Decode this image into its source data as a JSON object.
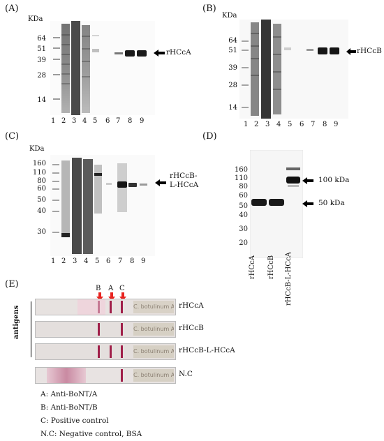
{
  "panels": {
    "A": {
      "label": "(A)",
      "unit": "KDa",
      "markers": [
        "64",
        "51",
        "39",
        "28",
        "14"
      ],
      "lanes": [
        "1",
        "2",
        "3",
        "4",
        "5",
        "6",
        "7",
        "8",
        "9"
      ],
      "band_label": "rHCcA"
    },
    "B": {
      "label": "(B)",
      "unit": "KDa",
      "markers": [
        "64",
        "51",
        "39",
        "28",
        "14"
      ],
      "lanes": [
        "1",
        "2",
        "3",
        "4",
        "5",
        "6",
        "7",
        "8",
        "9"
      ],
      "band_label": "rHCcB"
    },
    "C": {
      "label": "(C)",
      "unit": "KDa",
      "markers": [
        "160",
        "110",
        "80",
        "60",
        "50",
        "40",
        "30"
      ],
      "lanes": [
        "1",
        "2",
        "3",
        "4",
        "5",
        "6",
        "7",
        "8",
        "9"
      ],
      "band_label_line1": "rHCcB-",
      "band_label_line2": "L-HCcA"
    },
    "D": {
      "label": "(D)",
      "markers": [
        "160",
        "110",
        "80",
        "60",
        "50",
        "40",
        "30",
        "20"
      ],
      "lanes": [
        "rHCcA",
        "rHCcB",
        "rHCcB-L-HCcA"
      ],
      "band_100": "100 kDa",
      "band_50": "50 kDa"
    },
    "E": {
      "label": "(E)",
      "group_label": "antigens",
      "arrow_labels": [
        "B",
        "A",
        "C"
      ],
      "strip_text": "C. botulinum A/B",
      "strips": [
        "rHCcA",
        "rHCcB",
        "rHCcB-L-HCcA",
        "N.C"
      ],
      "legend": [
        "A: Anti-BoNT/A",
        "B: Anti-BoNT/B",
        "C: Positive control",
        "N.C: Negative control, BSA"
      ]
    }
  },
  "colors": {
    "arrow_red": "#e8231f",
    "strip_band": "#a0204a"
  }
}
